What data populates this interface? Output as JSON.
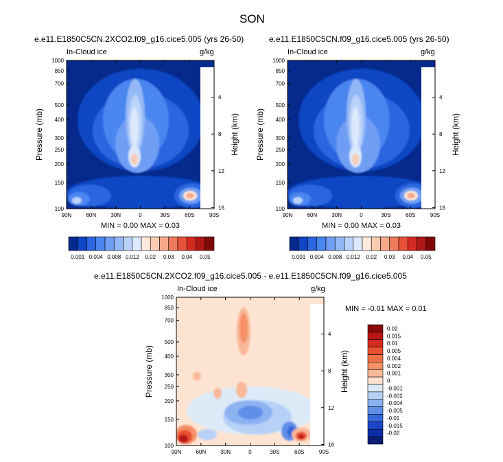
{
  "figure": {
    "title": "SON"
  },
  "chart_data": [
    {
      "type": "heatmap",
      "title": "e.e11.E1850C5CN.2XCO2.f09_g16.cice5.005 (yrs 26-50)",
      "left_label": "In-Cloud ice",
      "right_label": "g/kg",
      "ylabel": "Pressure (mb)",
      "y2label": "Height (km)",
      "xticks": [
        "90N",
        "60N",
        "30N",
        "0",
        "30S",
        "60S",
        "90S"
      ],
      "yticks": [
        "100",
        "150",
        "200",
        "250",
        "300",
        "400",
        "500",
        "700",
        "850",
        "1000"
      ],
      "y2ticks": [
        "16",
        "12",
        "8",
        "4"
      ],
      "ylim": [
        1000,
        100
      ],
      "y_scale": "log",
      "stats": "MIN =  0.00  MAX =  0.03",
      "min": 0.0,
      "max": 0.03,
      "colorbar": {
        "orientation": "horizontal",
        "labels": [
          "0.001",
          "0.004",
          "0.008",
          "0.012",
          "0.02",
          "0.03",
          "0.04",
          "0.05"
        ],
        "levels": [
          0.001,
          0.002,
          0.004,
          0.006,
          0.008,
          0.01,
          0.012,
          0.015,
          0.02,
          0.025,
          0.03,
          0.035,
          0.04,
          0.045,
          0.05
        ],
        "colors": [
          "#052a8c",
          "#0f46c4",
          "#2a66e0",
          "#4a86f0",
          "#6f9ef4",
          "#94b8f6",
          "#b9d2f9",
          "#dce8fb",
          "#fdeadc",
          "#f9ccb2",
          "#f5a88a",
          "#f07a5c",
          "#e8513a",
          "#d42a22",
          "#b01818",
          "#800808"
        ]
      }
    },
    {
      "type": "heatmap",
      "title": "e.e11.E1850C5CN.f09_g16.cice5.005 (yrs 26-50)",
      "left_label": "In-Cloud ice",
      "right_label": "g/kg",
      "ylabel": "Pressure (mb)",
      "y2label": "Height (km)",
      "xticks": [
        "90N",
        "60N",
        "30N",
        "0",
        "30S",
        "60S",
        "90S"
      ],
      "yticks": [
        "100",
        "150",
        "200",
        "250",
        "300",
        "400",
        "500",
        "700",
        "850",
        "1000"
      ],
      "y2ticks": [
        "16",
        "12",
        "8",
        "4"
      ],
      "ylim": [
        1000,
        100
      ],
      "y_scale": "log",
      "stats": "MIN =  0.00  MAX =  0.03",
      "min": 0.0,
      "max": 0.03,
      "colorbar": {
        "orientation": "horizontal",
        "labels": [
          "0.001",
          "0.004",
          "0.008",
          "0.012",
          "0.02",
          "0.03",
          "0.04",
          "0.05"
        ],
        "levels": [
          0.001,
          0.002,
          0.004,
          0.006,
          0.008,
          0.01,
          0.012,
          0.015,
          0.02,
          0.025,
          0.03,
          0.035,
          0.04,
          0.045,
          0.05
        ],
        "colors": [
          "#052a8c",
          "#0f46c4",
          "#2a66e0",
          "#4a86f0",
          "#6f9ef4",
          "#94b8f6",
          "#b9d2f9",
          "#dce8fb",
          "#fdeadc",
          "#f9ccb2",
          "#f5a88a",
          "#f07a5c",
          "#e8513a",
          "#d42a22",
          "#b01818",
          "#800808"
        ]
      }
    },
    {
      "type": "heatmap",
      "title": "e.e11.E1850C5CN.2XCO2.f09_g16.cice5.005 - e.e11.E1850C5CN.f09_g16.cice5.005",
      "left_label": "In-Cloud ice",
      "right_label": "g/kg",
      "ylabel": "Pressure (mb)",
      "y2label": "Height (km)",
      "xticks": [
        "90N",
        "60N",
        "30N",
        "0",
        "30S",
        "60S",
        "90S"
      ],
      "yticks": [
        "100",
        "150",
        "200",
        "250",
        "300",
        "400",
        "500",
        "700",
        "850",
        "1000"
      ],
      "y2ticks": [
        "16",
        "12",
        "8",
        "4"
      ],
      "ylim": [
        1000,
        100
      ],
      "y_scale": "log",
      "stats": "MIN = -0.01  MAX =  0.01",
      "min": -0.01,
      "max": 0.01,
      "colorbar": {
        "orientation": "vertical",
        "labels": [
          "0.02",
          "0.015",
          "0.01",
          "0.005",
          "0.004",
          "0.002",
          "0.001",
          "0",
          "-0.001",
          "-0.002",
          "-0.004",
          "-0.005",
          "-0.01",
          "-0.015",
          "-0.02"
        ],
        "colors": [
          "#8a0a0a",
          "#b81616",
          "#d62a1e",
          "#e8502e",
          "#f07048",
          "#f59068",
          "#f9b898",
          "#fde4d2",
          "#dceaf8",
          "#b6d0f6",
          "#8cb2f2",
          "#5e8ee8",
          "#3568dc",
          "#1a46c8",
          "#0a2ea8",
          "#0a1e78"
        ]
      }
    }
  ]
}
